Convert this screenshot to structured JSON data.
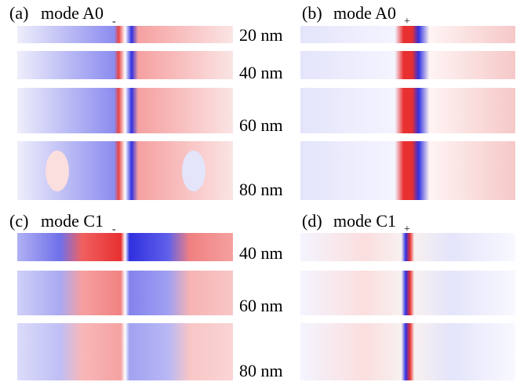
{
  "panels": [
    {
      "label": "(a)",
      "mode": "mode A0",
      "subscript": "-"
    },
    {
      "label": "(b)",
      "mode": "mode A0",
      "subscript": "+"
    },
    {
      "label": "(c)",
      "mode": "mode C1",
      "subscript": "-"
    },
    {
      "label": "(d)",
      "mode": "mode C1",
      "subscript": "+"
    }
  ],
  "top_thickness_labels": [
    "20 nm",
    "40 nm",
    "60 nm",
    "80 nm"
  ],
  "bottom_thickness_labels": [
    "40 nm",
    "60 nm",
    "80 nm"
  ]
}
